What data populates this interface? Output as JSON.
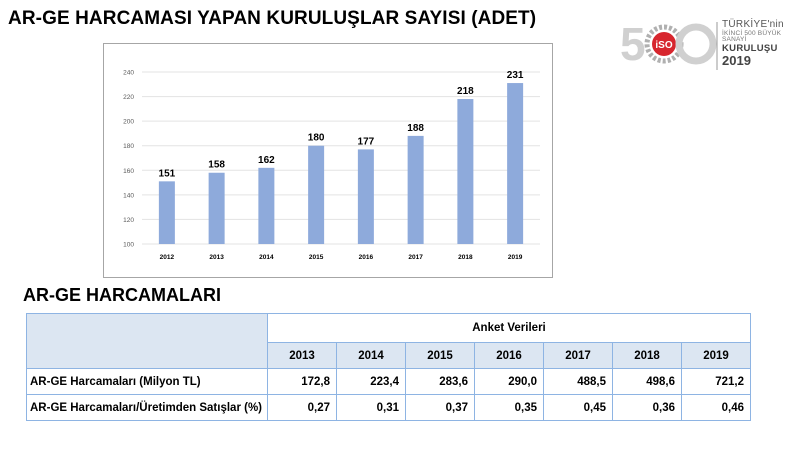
{
  "page_title": "AR-GE HARCAMASI YAPAN KURULUŞLAR SAYISI (ADET)",
  "logo": {
    "number": "500",
    "line1": "TÜRKİYE'nin",
    "line2": "İKİNCİ 500 BÜYÜK SANAYİ",
    "line3": "KURULUŞU",
    "year": "2019",
    "accent_color": "#d7262e"
  },
  "chart_data": {
    "type": "bar",
    "categories": [
      "2012",
      "2013",
      "2014",
      "2015",
      "2016",
      "2017",
      "2018",
      "2019"
    ],
    "values": [
      151,
      158,
      162,
      180,
      177,
      188,
      218,
      231
    ],
    "ylim": [
      100,
      240
    ],
    "yticks": [
      100,
      120,
      140,
      160,
      180,
      200,
      220,
      240
    ],
    "grid": true,
    "bar_color": "#8eaadb",
    "data_labels": true
  },
  "section_title": "AR-GE HARCAMALARI",
  "table": {
    "group_header": "Anket Verileri",
    "years": [
      "2013",
      "2014",
      "2015",
      "2016",
      "2017",
      "2018",
      "2019"
    ],
    "rows": [
      {
        "label": "AR-GE Harcamaları (Milyon TL)",
        "values": [
          "172,8",
          "223,4",
          "283,6",
          "290,0",
          "488,5",
          "498,6",
          "721,2"
        ]
      },
      {
        "label": "AR-GE Harcamaları/Üretimden Satışlar (%)",
        "values": [
          "0,27",
          "0,31",
          "0,37",
          "0,35",
          "0,45",
          "0,36",
          "0,46"
        ]
      }
    ],
    "header_bg": "#dce6f2",
    "border_color": "#8eb4e3"
  }
}
